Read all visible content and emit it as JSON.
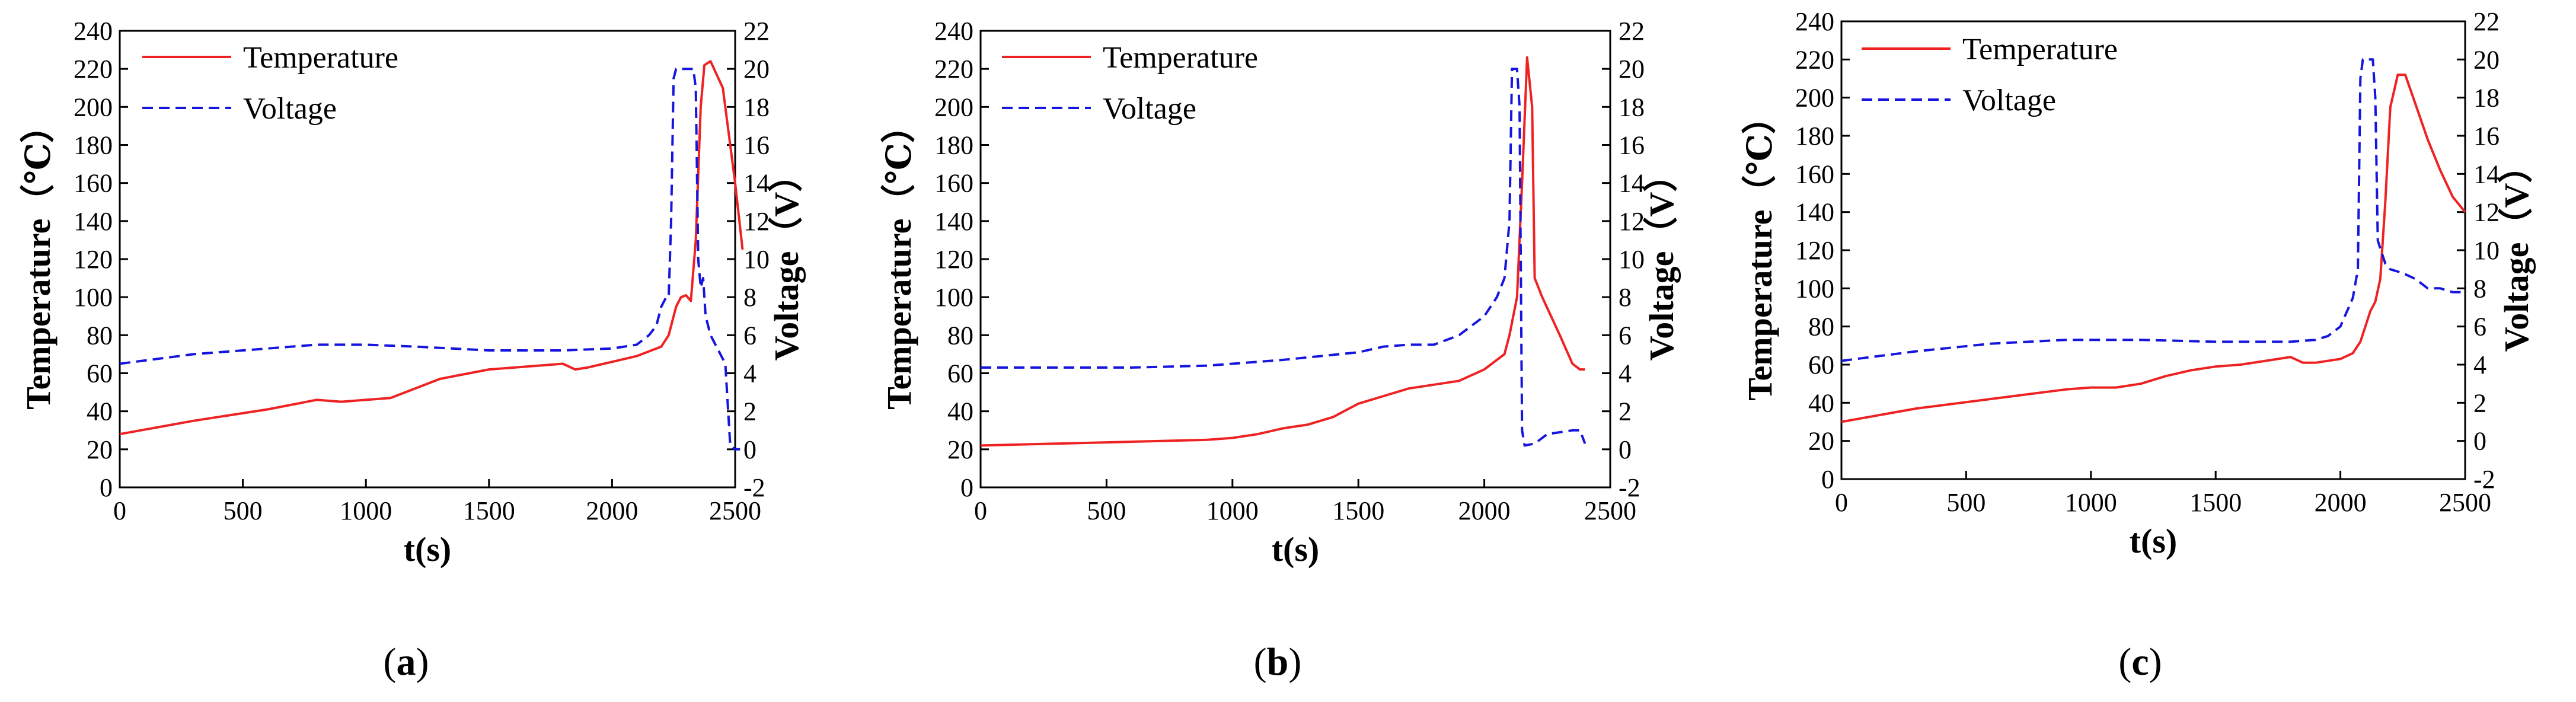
{
  "figure": {
    "panels": [
      {
        "id": "a",
        "caption_open": "(",
        "caption_letter": "a",
        "caption_close": ")"
      },
      {
        "id": "b",
        "caption_open": "(",
        "caption_letter": "b",
        "caption_close": ")"
      },
      {
        "id": "c",
        "caption_open": "(",
        "caption_letter": "c",
        "caption_close": ")"
      }
    ]
  },
  "chart_data": [
    {
      "type": "line",
      "panel": "a",
      "xlabel": "t(s)",
      "ylabel": "Temperature（℃）",
      "y2label": "Voltage（V）",
      "xlim": [
        0,
        2500
      ],
      "ylim": [
        0,
        240
      ],
      "y2lim": [
        -2,
        22
      ],
      "xticks": [
        0,
        500,
        1000,
        1500,
        2000,
        2500
      ],
      "yticks": [
        0,
        20,
        40,
        60,
        80,
        100,
        120,
        140,
        160,
        180,
        200,
        220,
        240
      ],
      "y2ticks": [
        -2,
        0,
        2,
        4,
        6,
        8,
        10,
        12,
        14,
        16,
        18,
        20,
        22
      ],
      "legend": [
        "Temperature",
        "Voltage"
      ],
      "legend_position": "top-left",
      "colors": {
        "Temperature": "#ee2222",
        "Voltage": "#1515dd"
      },
      "series": [
        {
          "name": "Temperature",
          "axis": "left",
          "style": "solid",
          "x": [
            0,
            300,
            600,
            800,
            900,
            1000,
            1100,
            1200,
            1300,
            1500,
            1700,
            1800,
            1850,
            1900,
            2000,
            2100,
            2200,
            2230,
            2260,
            2280,
            2300,
            2320,
            2340,
            2360,
            2375,
            2400,
            2450,
            2500,
            2530
          ],
          "y": [
            28,
            35,
            41,
            46,
            45,
            46,
            47,
            52,
            57,
            62,
            64,
            65,
            62,
            63,
            66,
            69,
            74,
            80,
            95,
            100,
            101,
            98,
            130,
            200,
            222,
            224,
            210,
            160,
            125
          ]
        },
        {
          "name": "Voltage",
          "axis": "right",
          "style": "dashed",
          "x": [
            0,
            300,
            600,
            800,
            1000,
            1200,
            1500,
            1800,
            2000,
            2100,
            2150,
            2180,
            2200,
            2220,
            2230,
            2240,
            2250,
            2260,
            2300,
            2330,
            2340,
            2350,
            2360,
            2370,
            2380,
            2400,
            2420,
            2440,
            2460,
            2480,
            2500,
            2520
          ],
          "y": [
            4.5,
            5.0,
            5.3,
            5.5,
            5.5,
            5.4,
            5.2,
            5.2,
            5.3,
            5.5,
            6.0,
            6.5,
            7.5,
            8.0,
            8.0,
            12.0,
            19.5,
            20.0,
            20.0,
            20.0,
            19.0,
            10.0,
            8.5,
            9.0,
            7.0,
            6.0,
            5.5,
            5.0,
            4.5,
            0.2,
            0.0,
            0.0
          ]
        }
      ]
    },
    {
      "type": "line",
      "panel": "b",
      "xlabel": "t(s)",
      "ylabel": "Temperature（℃）",
      "y2label": "Voltage（V）",
      "xlim": [
        0,
        2500
      ],
      "ylim": [
        0,
        240
      ],
      "y2lim": [
        -2,
        22
      ],
      "xticks": [
        0,
        500,
        1000,
        1500,
        2000,
        2500
      ],
      "yticks": [
        0,
        20,
        40,
        60,
        80,
        100,
        120,
        140,
        160,
        180,
        200,
        220,
        240
      ],
      "y2ticks": [
        -2,
        0,
        2,
        4,
        6,
        8,
        10,
        12,
        14,
        16,
        18,
        20,
        22
      ],
      "legend": [
        "Temperature",
        "Voltage"
      ],
      "legend_position": "top-right",
      "colors": {
        "Temperature": "#ee2222",
        "Voltage": "#1515dd"
      },
      "series": [
        {
          "name": "Temperature",
          "axis": "left",
          "style": "solid",
          "x": [
            0,
            300,
            600,
            900,
            1000,
            1100,
            1200,
            1300,
            1400,
            1500,
            1600,
            1700,
            1800,
            1900,
            2000,
            2050,
            2080,
            2100,
            2130,
            2150,
            2170,
            2190,
            2200,
            2230,
            2300,
            2350,
            2380,
            2400
          ],
          "y": [
            22,
            23,
            24,
            25,
            26,
            28,
            31,
            33,
            37,
            44,
            48,
            52,
            54,
            56,
            62,
            67,
            70,
            80,
            100,
            160,
            226,
            200,
            110,
            100,
            80,
            65,
            62,
            62
          ]
        },
        {
          "name": "Voltage",
          "axis": "right",
          "style": "dashed",
          "x": [
            0,
            300,
            600,
            900,
            1200,
            1500,
            1600,
            1700,
            1800,
            1900,
            2000,
            2050,
            2080,
            2100,
            2110,
            2130,
            2140,
            2150,
            2160,
            2200,
            2250,
            2300,
            2350,
            2380,
            2400
          ],
          "y": [
            4.3,
            4.3,
            4.3,
            4.4,
            4.7,
            5.1,
            5.4,
            5.5,
            5.5,
            6.0,
            7.0,
            8.0,
            9.0,
            12.0,
            20.0,
            20.0,
            18.0,
            1.0,
            0.2,
            0.3,
            0.8,
            0.9,
            1.0,
            1.0,
            0.3
          ]
        }
      ]
    },
    {
      "type": "line",
      "panel": "c",
      "xlabel": "t(s)",
      "ylabel": "Temperature（℃）",
      "y2label": "Voltage（V）",
      "xlim": [
        0,
        2500
      ],
      "ylim": [
        0,
        240
      ],
      "y2lim": [
        -2,
        22
      ],
      "xticks": [
        0,
        500,
        1000,
        1500,
        2000,
        2500
      ],
      "yticks": [
        0,
        20,
        40,
        60,
        80,
        100,
        120,
        140,
        160,
        180,
        200,
        220,
        240
      ],
      "y2ticks": [
        -2,
        0,
        2,
        4,
        6,
        8,
        10,
        12,
        14,
        16,
        18,
        20,
        22
      ],
      "legend": [
        "Temperature",
        "Voltage"
      ],
      "legend_position": "top-left",
      "colors": {
        "Temperature": "#ee2222",
        "Voltage": "#1515dd"
      },
      "series": [
        {
          "name": "Temperature",
          "axis": "left",
          "style": "solid",
          "x": [
            0,
            300,
            600,
            900,
            1000,
            1100,
            1200,
            1300,
            1400,
            1500,
            1600,
            1700,
            1800,
            1850,
            1900,
            2000,
            2050,
            2080,
            2100,
            2120,
            2140,
            2160,
            2180,
            2200,
            2230,
            2260,
            2300,
            2350,
            2400,
            2450,
            2500
          ],
          "y": [
            30,
            37,
            42,
            47,
            48,
            48,
            50,
            54,
            57,
            59,
            60,
            62,
            64,
            61,
            61,
            63,
            66,
            72,
            80,
            88,
            93,
            105,
            145,
            195,
            212,
            212,
            197,
            178,
            162,
            148,
            140
          ]
        },
        {
          "name": "Voltage",
          "axis": "right",
          "style": "dashed",
          "x": [
            0,
            300,
            600,
            900,
            1000,
            1200,
            1500,
            1800,
            1900,
            1950,
            2000,
            2050,
            2070,
            2080,
            2090,
            2110,
            2130,
            2140,
            2150,
            2180,
            2200,
            2250,
            2300,
            2350,
            2400,
            2450,
            2500
          ],
          "y": [
            4.2,
            4.7,
            5.1,
            5.3,
            5.3,
            5.3,
            5.2,
            5.2,
            5.3,
            5.5,
            6.0,
            7.5,
            9.0,
            19.0,
            20.0,
            20.0,
            20.0,
            18.0,
            10.5,
            9.3,
            9.0,
            8.8,
            8.5,
            8.0,
            8.0,
            7.8,
            7.8
          ]
        }
      ]
    }
  ]
}
